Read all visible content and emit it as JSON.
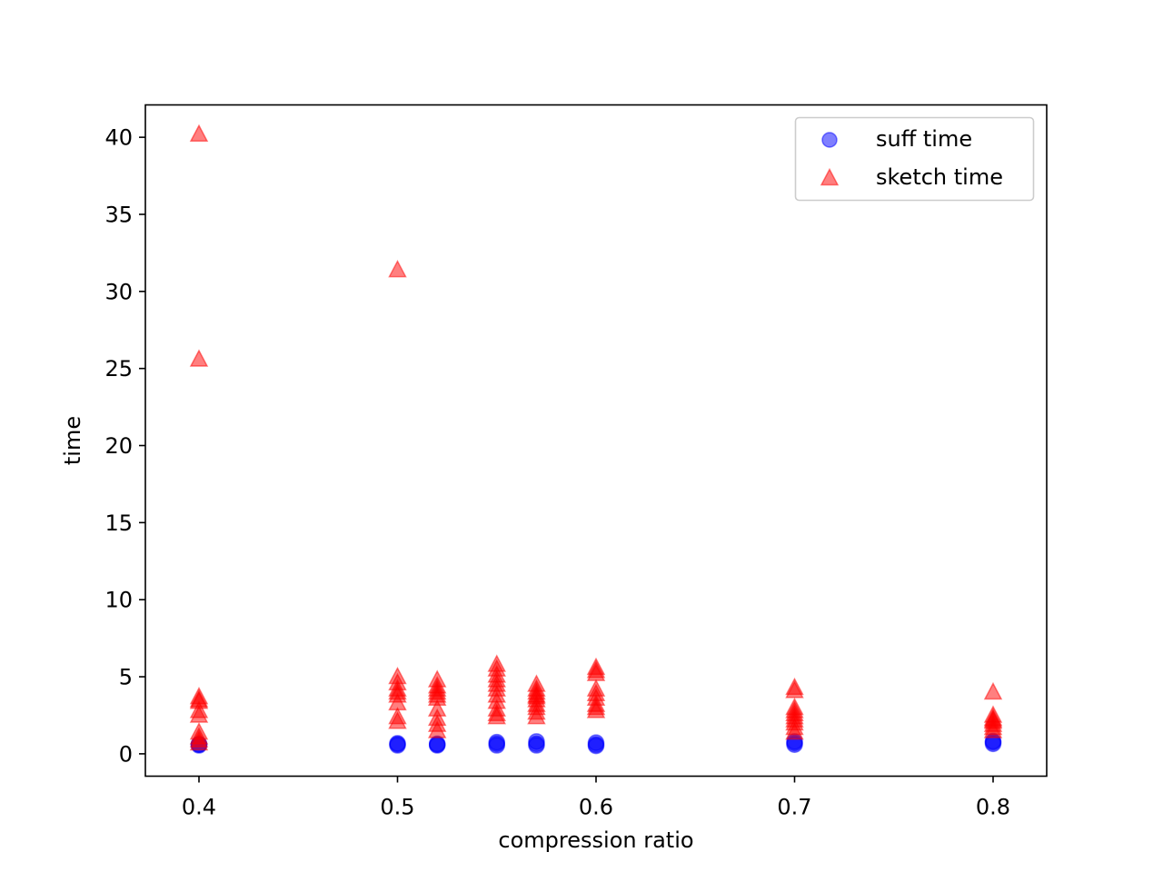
{
  "chart_data": {
    "type": "scatter",
    "xlabel": "compression ratio",
    "ylabel": "time",
    "xlim": [
      0.373,
      0.827
    ],
    "ylim": [
      -1.45,
      42.1
    ],
    "xticks": [
      0.4,
      0.5,
      0.6,
      0.7,
      0.8
    ],
    "xtick_labels": [
      "0.4",
      "0.5",
      "0.6",
      "0.7",
      "0.8"
    ],
    "yticks": [
      0,
      5,
      10,
      15,
      20,
      25,
      30,
      35,
      40
    ],
    "ytick_labels": [
      "0",
      "5",
      "10",
      "15",
      "20",
      "25",
      "30",
      "35",
      "40"
    ],
    "grid": false,
    "legend_position": "top-right",
    "series": [
      {
        "name": "suff time",
        "marker": "circle",
        "color": "#0000ff",
        "alpha": 0.5,
        "points": [
          [
            0.4,
            0.55
          ],
          [
            0.4,
            0.6
          ],
          [
            0.4,
            0.62
          ],
          [
            0.5,
            0.55
          ],
          [
            0.5,
            0.62
          ],
          [
            0.5,
            0.68
          ],
          [
            0.52,
            0.55
          ],
          [
            0.52,
            0.6
          ],
          [
            0.52,
            0.65
          ],
          [
            0.55,
            0.55
          ],
          [
            0.55,
            0.65
          ],
          [
            0.55,
            0.75
          ],
          [
            0.57,
            0.55
          ],
          [
            0.57,
            0.65
          ],
          [
            0.57,
            0.8
          ],
          [
            0.6,
            0.52
          ],
          [
            0.6,
            0.6
          ],
          [
            0.6,
            0.72
          ],
          [
            0.7,
            0.6
          ],
          [
            0.7,
            0.7
          ],
          [
            0.7,
            0.8
          ],
          [
            0.8,
            0.65
          ],
          [
            0.8,
            0.75
          ],
          [
            0.8,
            0.82
          ]
        ]
      },
      {
        "name": "sketch time",
        "marker": "triangle",
        "color": "#ff0000",
        "alpha": 0.5,
        "points": [
          [
            0.4,
            40.2
          ],
          [
            0.4,
            25.6
          ],
          [
            0.4,
            3.7
          ],
          [
            0.4,
            3.5
          ],
          [
            0.4,
            3.4
          ],
          [
            0.4,
            2.8
          ],
          [
            0.4,
            2.5
          ],
          [
            0.4,
            1.4
          ],
          [
            0.4,
            1.1
          ],
          [
            0.4,
            0.9
          ],
          [
            0.4,
            0.7
          ],
          [
            0.5,
            31.4
          ],
          [
            0.5,
            5.0
          ],
          [
            0.5,
            4.6
          ],
          [
            0.5,
            4.2
          ],
          [
            0.5,
            4.0
          ],
          [
            0.5,
            3.8
          ],
          [
            0.5,
            3.3
          ],
          [
            0.5,
            2.4
          ],
          [
            0.5,
            2.1
          ],
          [
            0.52,
            4.8
          ],
          [
            0.52,
            4.4
          ],
          [
            0.52,
            4.2
          ],
          [
            0.52,
            4.0
          ],
          [
            0.52,
            3.8
          ],
          [
            0.52,
            3.6
          ],
          [
            0.52,
            2.9
          ],
          [
            0.52,
            2.3
          ],
          [
            0.52,
            1.9
          ],
          [
            0.52,
            1.5
          ],
          [
            0.55,
            5.8
          ],
          [
            0.55,
            5.5
          ],
          [
            0.55,
            5.1
          ],
          [
            0.55,
            4.8
          ],
          [
            0.55,
            4.5
          ],
          [
            0.55,
            4.2
          ],
          [
            0.55,
            3.8
          ],
          [
            0.55,
            3.4
          ],
          [
            0.55,
            2.9
          ],
          [
            0.55,
            2.6
          ],
          [
            0.55,
            2.4
          ],
          [
            0.57,
            4.5
          ],
          [
            0.57,
            4.2
          ],
          [
            0.57,
            4.0
          ],
          [
            0.57,
            3.8
          ],
          [
            0.57,
            3.7
          ],
          [
            0.57,
            3.5
          ],
          [
            0.57,
            3.2
          ],
          [
            0.57,
            3.0
          ],
          [
            0.57,
            2.7
          ],
          [
            0.57,
            2.4
          ],
          [
            0.6,
            5.6
          ],
          [
            0.6,
            5.4
          ],
          [
            0.6,
            5.2
          ],
          [
            0.6,
            4.2
          ],
          [
            0.6,
            3.9
          ],
          [
            0.6,
            3.6
          ],
          [
            0.6,
            3.2
          ],
          [
            0.6,
            3.0
          ],
          [
            0.6,
            2.8
          ],
          [
            0.7,
            4.3
          ],
          [
            0.7,
            4.1
          ],
          [
            0.7,
            3.0
          ],
          [
            0.7,
            2.8
          ],
          [
            0.7,
            2.6
          ],
          [
            0.7,
            2.4
          ],
          [
            0.7,
            2.2
          ],
          [
            0.7,
            2.0
          ],
          [
            0.7,
            1.7
          ],
          [
            0.7,
            1.4
          ],
          [
            0.8,
            4.0
          ],
          [
            0.8,
            2.5
          ],
          [
            0.8,
            2.3
          ],
          [
            0.8,
            2.2
          ],
          [
            0.8,
            2.1
          ],
          [
            0.8,
            1.9
          ],
          [
            0.8,
            1.7
          ],
          [
            0.8,
            1.5
          ]
        ]
      }
    ]
  }
}
